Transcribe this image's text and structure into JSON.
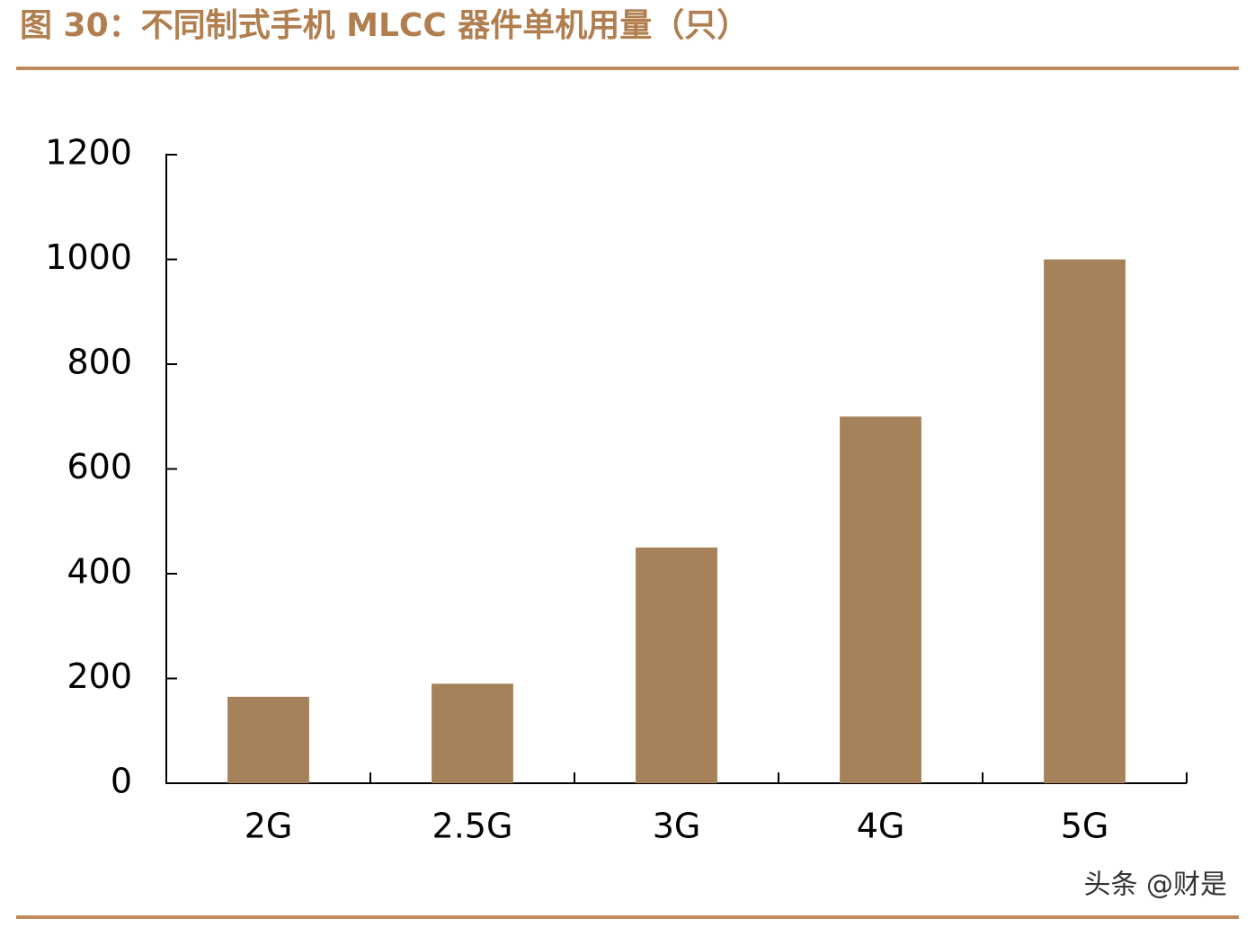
{
  "chart_data": {
    "type": "bar",
    "title": "图 30：不同制式手机 MLCC 器件单机用量（只）",
    "categories": [
      "2G",
      "2.5G",
      "3G",
      "4G",
      "5G"
    ],
    "values": [
      165,
      190,
      450,
      700,
      1000
    ],
    "color": "#a6825a",
    "ylim": [
      0,
      1200
    ],
    "yticks": [
      0,
      200,
      400,
      600,
      800,
      1000,
      1200
    ],
    "grid": false,
    "watermark": "头条 @财是"
  }
}
